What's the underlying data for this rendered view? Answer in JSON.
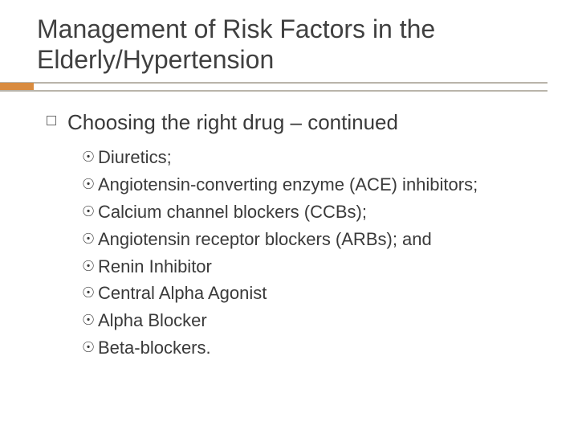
{
  "colors": {
    "text": "#3a3a3a",
    "title": "#404040",
    "accent_bar": "#d98b3f",
    "rule_line": "#b9b4aa",
    "background": "#ffffff",
    "bullet_border": "#6f6f6f"
  },
  "title": "Management of Risk Factors in the Elderly/Hypertension",
  "main_item": "Choosing the right drug – continued",
  "sub_items": [
    "Diuretics;",
    "Angiotensin-converting enzyme (ACE) inhibitors;",
    "Calcium channel blockers (CCBs);",
    "Angiotensin receptor blockers (ARBs); and",
    "Renin Inhibitor",
    "Central Alpha Agonist",
    "Alpha Blocker",
    "Beta-blockers."
  ],
  "sub_bullet_glyph": "☉"
}
